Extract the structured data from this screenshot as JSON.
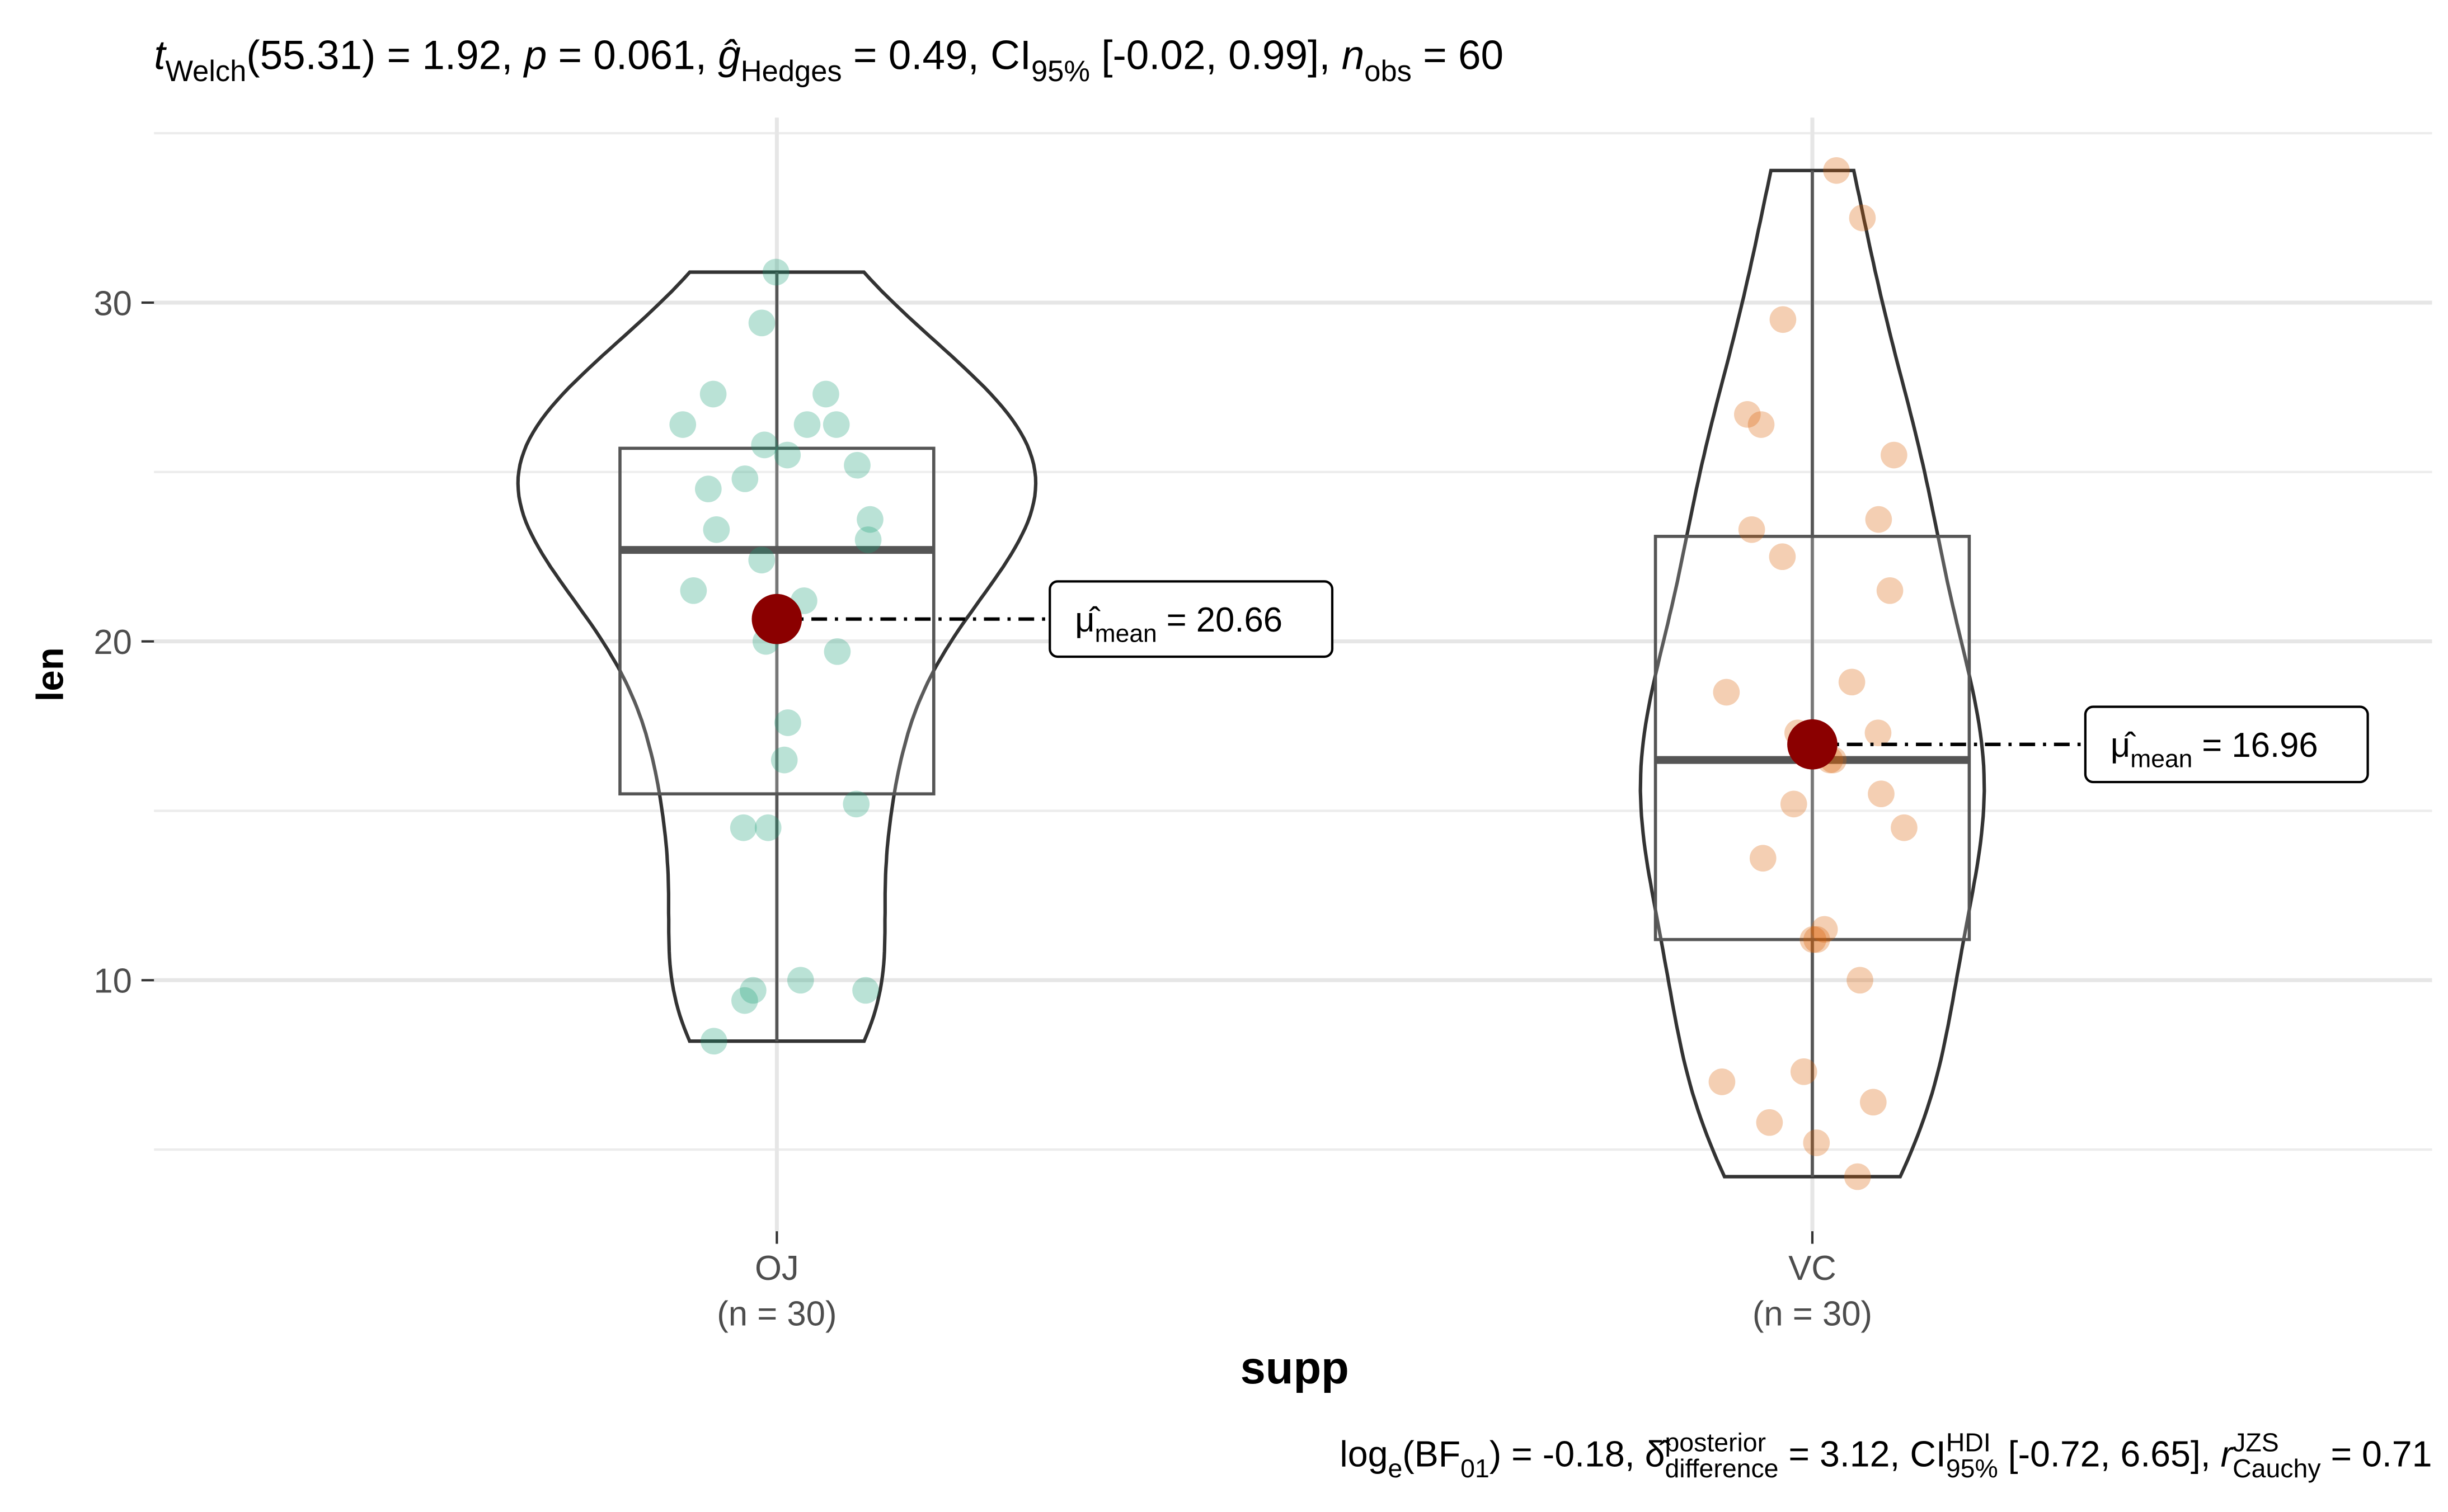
{
  "chart_data": {
    "type": "violin-box",
    "subtitle": [
      {
        "text": "t",
        "style": "italic"
      },
      {
        "text": "Welch",
        "style": "sub"
      },
      {
        "text": "(55.31) = 1.92, "
      },
      {
        "text": "p",
        "style": "italic"
      },
      {
        "text": " = 0.061, "
      },
      {
        "text": "ĝ",
        "style": "italic"
      },
      {
        "text": "Hedges",
        "style": "sub"
      },
      {
        "text": " = 0.49, CI"
      },
      {
        "text": "95%",
        "style": "sub"
      },
      {
        "text": " [-0.02, 0.99], "
      },
      {
        "text": "n",
        "style": "italic"
      },
      {
        "text": "obs",
        "style": "sub"
      },
      {
        "text": " = 60"
      }
    ],
    "caption": [
      {
        "text": "log"
      },
      {
        "text": "e",
        "style": "sub"
      },
      {
        "text": "(BF"
      },
      {
        "text": "01",
        "style": "sub"
      },
      {
        "text": ") = -0.18, "
      },
      {
        "text": "δ̂"
      },
      {
        "sup": "posterior",
        "sub": "difference"
      },
      {
        "text": " = 3.12, CI"
      },
      {
        "sup": "HDI",
        "sub": "95%"
      },
      {
        "text": " [-0.72, 6.65], "
      },
      {
        "text": "r",
        "style": "italic"
      },
      {
        "sup": "JZS",
        "sub": "Cauchy"
      },
      {
        "text": " = 0.71"
      }
    ],
    "x_label": "supp",
    "y_label": "len",
    "ylim": [
      2.59,
      35.46
    ],
    "yticks": [
      10,
      20,
      30
    ],
    "minor_yticks": [
      5,
      15,
      25,
      35
    ],
    "grid": true,
    "mean_symbol": "μ̂",
    "mean_sub": "mean",
    "mean_color": "#8B0000",
    "series": [
      {
        "name": "OJ",
        "n_label": "(n = 30)",
        "color": "#1B9E77",
        "values": [
          15.2,
          21.5,
          17.6,
          9.7,
          14.5,
          10.0,
          8.2,
          9.4,
          16.5,
          9.7,
          19.7,
          23.3,
          23.6,
          26.4,
          20.0,
          25.2,
          25.8,
          21.2,
          14.5,
          27.3,
          25.5,
          26.4,
          22.4,
          24.5,
          24.8,
          30.9,
          26.4,
          27.3,
          29.4,
          23.0
        ],
        "box": {
          "min": 8.2,
          "q1": 15.5,
          "median": 22.7,
          "q3": 25.7,
          "max": 30.9
        },
        "mean": 20.66,
        "mean_label": "= 20.66"
      },
      {
        "name": "VC",
        "n_label": "(n = 30)",
        "color": "#D95F02",
        "values": [
          4.2,
          11.5,
          7.3,
          5.8,
          6.4,
          10.0,
          11.2,
          11.2,
          5.2,
          7.0,
          16.5,
          16.5,
          15.2,
          17.3,
          22.5,
          17.3,
          13.6,
          14.5,
          18.8,
          15.5,
          23.6,
          18.5,
          33.9,
          25.5,
          26.4,
          32.5,
          26.7,
          21.5,
          23.3,
          29.5
        ],
        "box": {
          "min": 4.2,
          "q1": 11.2,
          "median": 16.5,
          "q3": 23.1,
          "max": 33.9
        },
        "mean": 16.96,
        "mean_label": "= 16.96"
      }
    ]
  }
}
